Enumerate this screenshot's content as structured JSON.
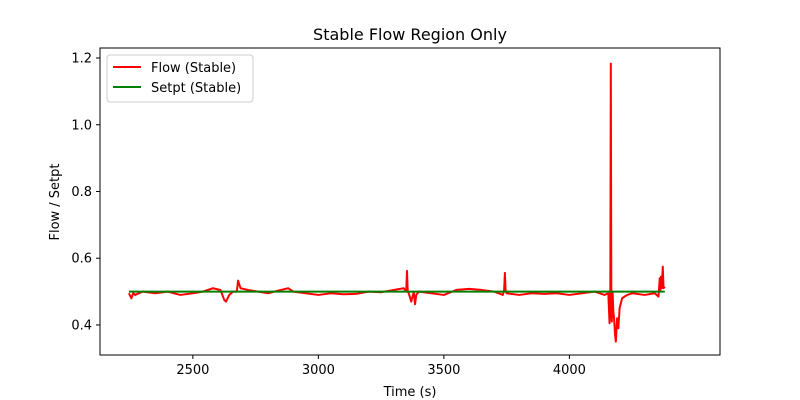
{
  "chart_data": {
    "type": "line",
    "title": "Stable Flow Region Only",
    "xlabel": "Time (s)",
    "ylabel": "Flow / Setpt",
    "xlim": [
      2130,
      4600
    ],
    "ylim": [
      0.31,
      1.23
    ],
    "xticks": [
      2500,
      3000,
      3500,
      4000
    ],
    "yticks": [
      0.4,
      0.6,
      0.8,
      1.0,
      1.2
    ],
    "xtick_labels": [
      "2500",
      "3000",
      "3500",
      "4000"
    ],
    "ytick_labels": [
      "0.4",
      "0.6",
      "0.8",
      "1.0",
      "1.2"
    ],
    "grid": false,
    "legend_position": "top-left",
    "series": [
      {
        "name": "Flow (Stable)",
        "color": "#ff0000",
        "x": [
          2245,
          2255,
          2262,
          2270,
          2300,
          2350,
          2400,
          2450,
          2500,
          2540,
          2580,
          2610,
          2625,
          2632,
          2645,
          2660,
          2675,
          2680,
          2690,
          2720,
          2760,
          2800,
          2850,
          2880,
          2900,
          2950,
          3000,
          3050,
          3100,
          3150,
          3200,
          3250,
          3300,
          3340,
          3350,
          3353,
          3356,
          3360,
          3370,
          3380,
          3385,
          3390,
          3400,
          3450,
          3500,
          3550,
          3600,
          3650,
          3700,
          3735,
          3740,
          3743,
          3746,
          3750,
          3800,
          3850,
          3900,
          3950,
          4000,
          4050,
          4100,
          4140,
          4155,
          4160,
          4163,
          4165,
          4167,
          4169,
          4172,
          4175,
          4178,
          4182,
          4185,
          4190,
          4195,
          4200,
          4210,
          4230,
          4250,
          4300,
          4340,
          4355,
          4360,
          4362,
          4365,
          4368,
          4372,
          4375,
          4380
        ],
        "values": [
          0.495,
          0.48,
          0.495,
          0.49,
          0.5,
          0.495,
          0.5,
          0.49,
          0.495,
          0.5,
          0.51,
          0.505,
          0.475,
          0.47,
          0.49,
          0.5,
          0.5,
          0.533,
          0.51,
          0.505,
          0.5,
          0.495,
          0.505,
          0.51,
          0.5,
          0.495,
          0.49,
          0.495,
          0.492,
          0.493,
          0.5,
          0.498,
          0.505,
          0.51,
          0.5,
          0.562,
          0.5,
          0.495,
          0.47,
          0.5,
          0.462,
          0.49,
          0.5,
          0.495,
          0.49,
          0.505,
          0.508,
          0.505,
          0.5,
          0.49,
          0.505,
          0.556,
          0.5,
          0.495,
          0.49,
          0.495,
          0.493,
          0.495,
          0.49,
          0.495,
          0.5,
          0.49,
          0.495,
          0.405,
          0.48,
          1.183,
          0.49,
          0.41,
          0.5,
          0.44,
          0.42,
          0.37,
          0.35,
          0.42,
          0.39,
          0.45,
          0.48,
          0.49,
          0.495,
          0.49,
          0.495,
          0.485,
          0.54,
          0.5,
          0.545,
          0.51,
          0.575,
          0.51,
          0.515
        ]
      },
      {
        "name": "Setpt (Stable)",
        "color": "#008000",
        "x": [
          2245,
          2400,
          2600,
          2800,
          3000,
          3200,
          3400,
          3600,
          3800,
          4000,
          4200,
          4380
        ],
        "values": [
          0.5,
          0.5,
          0.5,
          0.5,
          0.5,
          0.5,
          0.5,
          0.5,
          0.5,
          0.5,
          0.5,
          0.5
        ]
      }
    ]
  }
}
